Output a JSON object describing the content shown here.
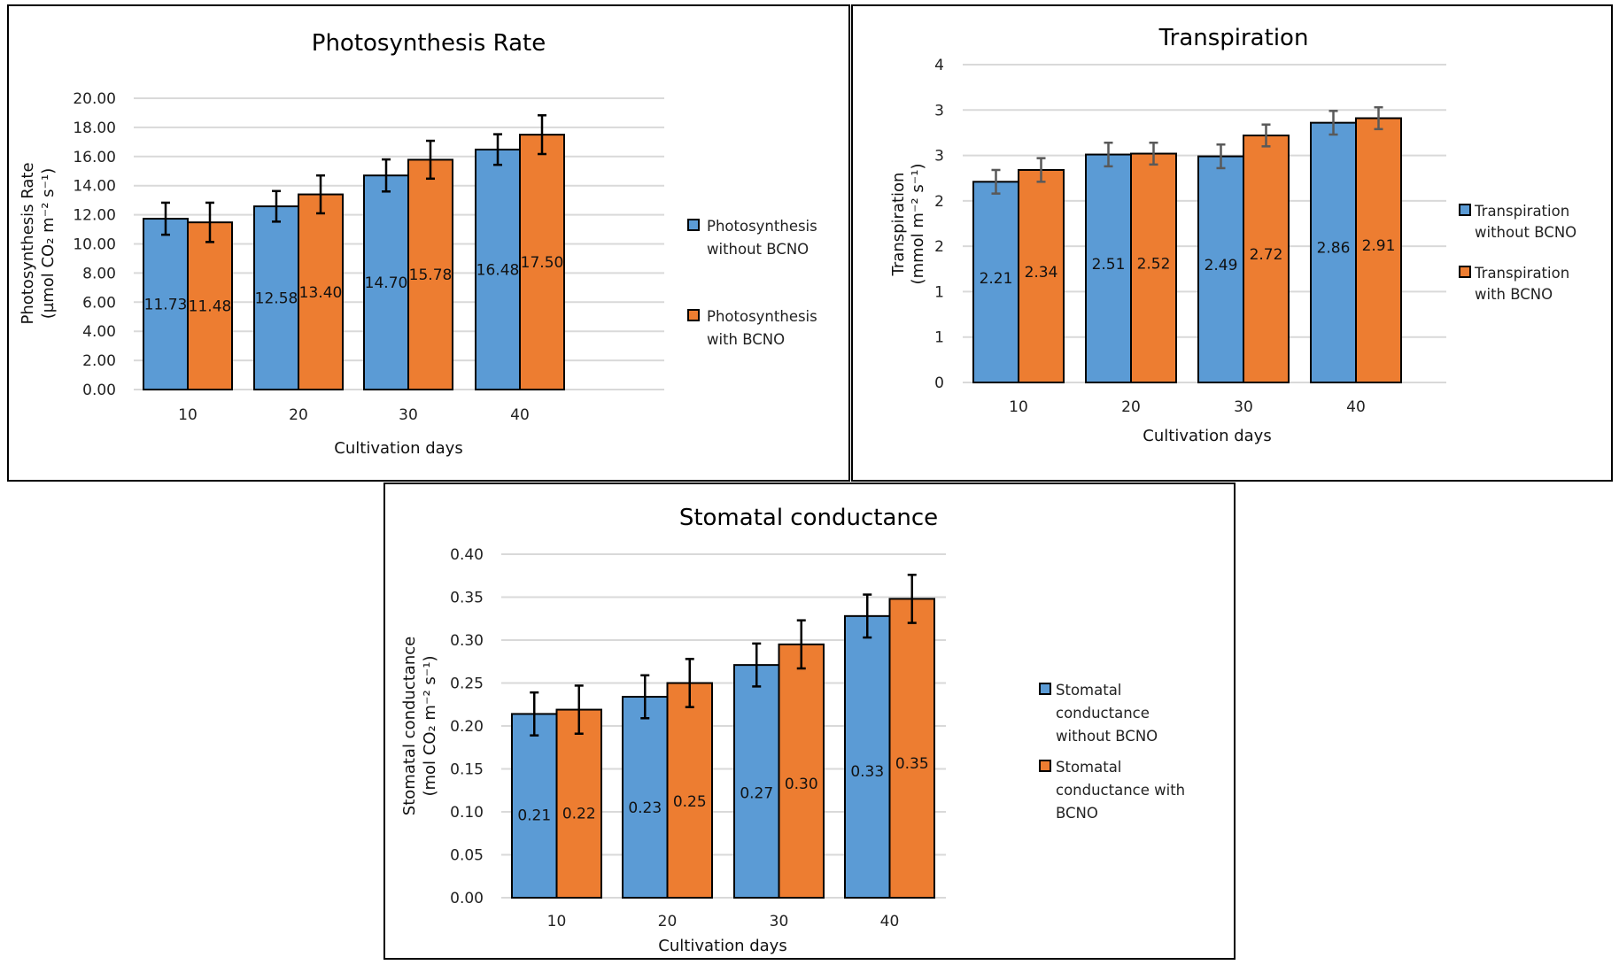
{
  "colors": {
    "without": "#5b9bd5",
    "with": "#ed7d31",
    "bar_border": "#000000",
    "grid": "#d9d9d9"
  },
  "chart_data": [
    {
      "id": "photosynthesis",
      "type": "bar",
      "title": "Photosynthesis Rate",
      "xlabel": "Cultivation days",
      "ylabel_line1": "Photosynthesis  Rate",
      "ylabel_line2": "(µmol CO₂ m⁻² s⁻¹)",
      "categories": [
        "10",
        "20",
        "30",
        "40"
      ],
      "ylim": [
        0,
        20
      ],
      "yticks": [
        0,
        2,
        4,
        6,
        8,
        10,
        12,
        14,
        16,
        18,
        20
      ],
      "ytick_labels": [
        "0.00",
        "2.00",
        "4.00",
        "6.00",
        "8.00",
        "10.00",
        "12.00",
        "14.00",
        "16.00",
        "18.00",
        "20.00"
      ],
      "grid": true,
      "legend_position": "right",
      "error_bar_color": "#000000",
      "series": [
        {
          "name": "Photosynthesis without BCNO",
          "legend_lines": [
            "Photosynthesis",
            "without BCNO"
          ],
          "values": [
            11.73,
            12.58,
            14.7,
            16.48
          ],
          "labels": [
            "11.73",
            "12.58",
            "14.70",
            "16.48"
          ],
          "errors": [
            1.1,
            1.05,
            1.1,
            1.05
          ]
        },
        {
          "name": "Photosynthesis with BCNO",
          "legend_lines": [
            "Photosynthesis",
            "with BCNO"
          ],
          "values": [
            11.48,
            13.4,
            15.78,
            17.5
          ],
          "labels": [
            "11.48",
            "13.40",
            "15.78",
            "17.50"
          ],
          "errors": [
            1.35,
            1.3,
            1.3,
            1.33
          ]
        }
      ]
    },
    {
      "id": "transpiration",
      "type": "bar",
      "title": "Transpiration",
      "xlabel": "Cultivation days",
      "ylabel_line1": "Transpiration",
      "ylabel_line2": "(mmol m⁻² s⁻¹)",
      "categories": [
        "10",
        "20",
        "30",
        "40"
      ],
      "ylim": [
        0,
        3.5
      ],
      "yticks": [
        0,
        0.5,
        1,
        1.5,
        2,
        2.5,
        3,
        3.5
      ],
      "ytick_labels": [
        "0",
        "1",
        "1",
        "2",
        "2",
        "3",
        "3",
        "4"
      ],
      "grid": true,
      "legend_position": "right",
      "error_bar_color": "#595959",
      "series": [
        {
          "name": "Transpiration without BCNO",
          "legend_lines": [
            "Transpiration",
            "without BCNO"
          ],
          "values": [
            2.21,
            2.51,
            2.49,
            2.86
          ],
          "labels": [
            "2.21",
            "2.51",
            "2.49",
            "2.86"
          ],
          "errors": [
            0.13,
            0.13,
            0.13,
            0.13
          ]
        },
        {
          "name": "Transpiration with BCNO",
          "legend_lines": [
            "Transpiration",
            "with BCNO"
          ],
          "values": [
            2.34,
            2.52,
            2.72,
            2.91
          ],
          "labels": [
            "2.34",
            "2.52",
            "2.72",
            "2.91"
          ],
          "errors": [
            0.13,
            0.12,
            0.12,
            0.12
          ]
        }
      ]
    },
    {
      "id": "stomatal",
      "type": "bar",
      "title": "Stomatal conductance",
      "xlabel": "Cultivation days",
      "ylabel_line1": "Stomatal conductance",
      "ylabel_line2": "(mol CO₂ m⁻² s⁻¹)",
      "categories": [
        "10",
        "20",
        "30",
        "40"
      ],
      "ylim": [
        0,
        0.4
      ],
      "yticks": [
        0,
        0.05,
        0.1,
        0.15,
        0.2,
        0.25,
        0.3,
        0.35,
        0.4
      ],
      "ytick_labels": [
        "0.00",
        "0.05",
        "0.10",
        "0.15",
        "0.20",
        "0.25",
        "0.30",
        "0.35",
        "0.40"
      ],
      "grid": true,
      "legend_position": "right",
      "error_bar_color": "#000000",
      "series": [
        {
          "name": "Stomatal conductance without BCNO",
          "legend_lines": [
            "Stomatal",
            "conductance",
            "without BCNO"
          ],
          "values": [
            0.214,
            0.234,
            0.271,
            0.328
          ],
          "labels": [
            "0.21",
            "0.23",
            "0.27",
            "0.33"
          ],
          "errors": [
            0.025,
            0.025,
            0.025,
            0.025
          ]
        },
        {
          "name": "Stomatal conductance with BCNO",
          "legend_lines": [
            "Stomatal",
            "conductance with",
            "BCNO"
          ],
          "values": [
            0.219,
            0.25,
            0.295,
            0.348
          ],
          "labels": [
            "0.22",
            "0.25",
            "0.30",
            "0.35"
          ],
          "errors": [
            0.028,
            0.028,
            0.028,
            0.028
          ]
        }
      ]
    }
  ]
}
